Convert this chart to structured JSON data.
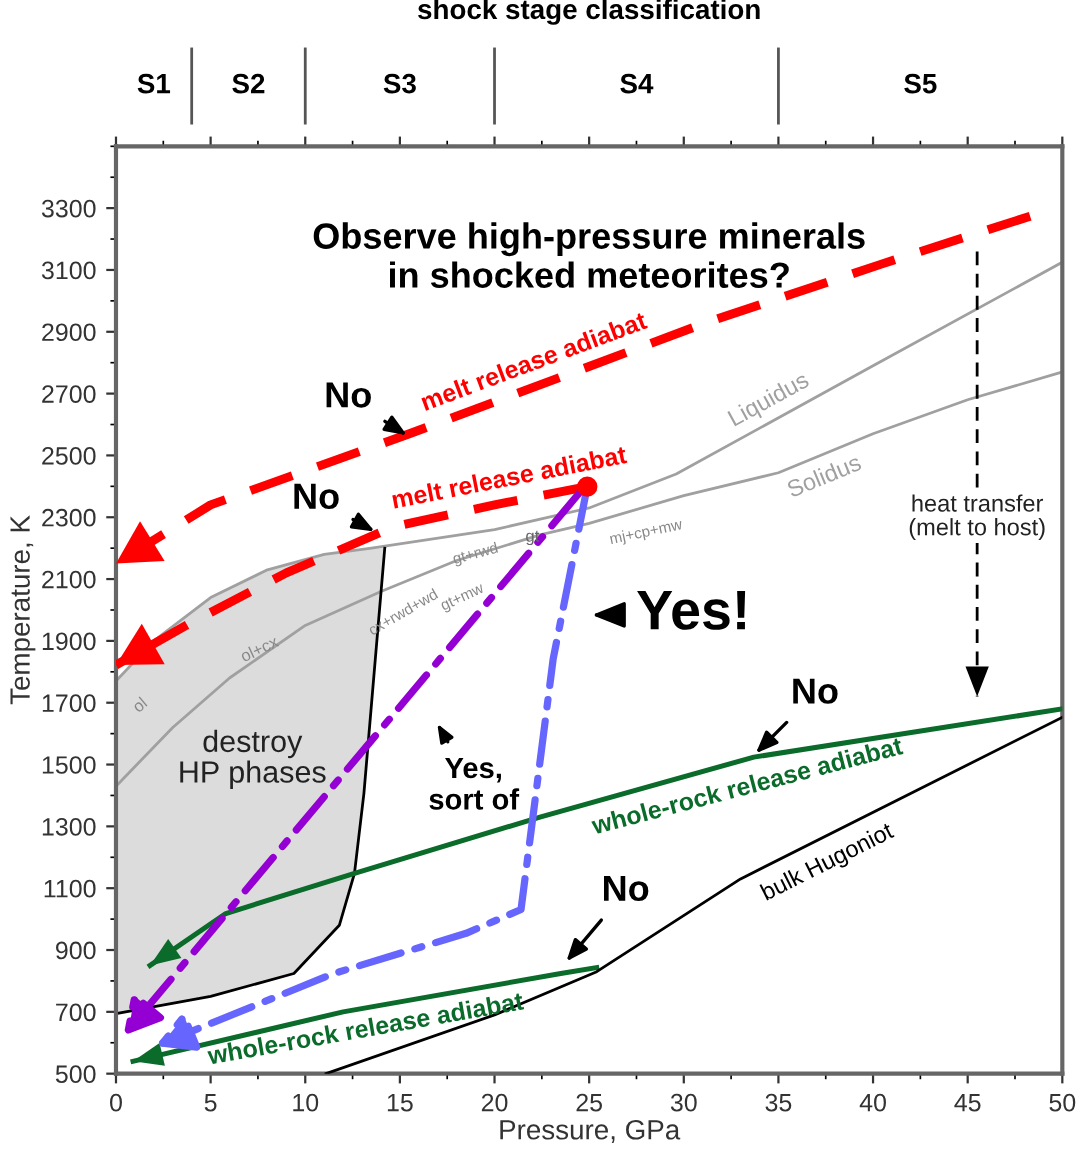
{
  "chart_data": {
    "type": "line",
    "title": "Observe high-pressure minerals\nin shocked meteorites?",
    "xlabel": "Pressure, GPa",
    "ylabel": "Temperature, K",
    "x2label": "shock stage classification",
    "xlim": [
      0,
      50
    ],
    "ylim": [
      500,
      3500
    ],
    "xticks": [
      0,
      5,
      10,
      15,
      20,
      25,
      30,
      35,
      40,
      45,
      50
    ],
    "yticks": [
      500,
      700,
      900,
      1100,
      1300,
      1500,
      1700,
      1900,
      2100,
      2300,
      2500,
      2700,
      2900,
      3100,
      3300
    ],
    "grid": false,
    "series": [
      {
        "name": "melt release adiabat",
        "color": "#ff0000",
        "line_style": "dashed",
        "x": [
          48.3,
          40.4,
          31.2,
          15.5,
          5,
          0
        ],
        "values": [
          3274,
          3118,
          2930,
          2570,
          2340,
          2150
        ]
      },
      {
        "name": "melt release adiabat",
        "color": "#ff0000",
        "line_style": "dashed",
        "x": [
          24.9,
          20,
          14.7,
          9,
          4,
          0
        ],
        "values": [
          2399,
          2340,
          2270,
          2120,
          1960,
          1822
        ]
      },
      {
        "type": "scatter",
        "color": "#ff0000",
        "marker": "circle",
        "x": [
          24.9
        ],
        "values": [
          2399
        ]
      },
      {
        "name": "Liquidus",
        "color": "#a0a0a0",
        "line_style": "solid",
        "x": [
          0,
          2,
          5,
          8,
          11,
          13.5,
          20,
          25,
          29.6,
          40,
          50
        ],
        "values": [
          1770,
          1900,
          2040,
          2130,
          2180,
          2200,
          2260,
          2330,
          2440,
          2790,
          3125
        ]
      },
      {
        "name": "Solidus",
        "color": "#a0a0a0",
        "line_style": "solid",
        "x": [
          0,
          3,
          6,
          10,
          14,
          18,
          22.4,
          25,
          30,
          35,
          40,
          45,
          50
        ],
        "values": [
          1430,
          1620,
          1780,
          1950,
          2060,
          2160,
          2243,
          2280,
          2370,
          2444,
          2570,
          2680,
          2770
        ]
      },
      {
        "color": "#000000",
        "line_style": "solid",
        "x": [
          0,
          5,
          9.4,
          11.8,
          12.6,
          13.1,
          13.7,
          14.2
        ],
        "values": [
          694,
          750,
          824,
          980,
          1148,
          1407,
          1840,
          2200
        ]
      },
      {
        "name": "whole-rock release adiabat",
        "color": "#0a6b2a",
        "line_style": "solid",
        "x": [
          50,
          33.7,
          22.4,
          12.6,
          5.8,
          1.8
        ],
        "values": [
          1680,
          1524,
          1330,
          1148,
          1018,
          850
        ]
      },
      {
        "name": "whole-rock release adiabat",
        "color": "#0a6b2a",
        "line_style": "solid",
        "x": [
          25.4,
          23.5,
          12,
          0.9
        ],
        "values": [
          843,
          824,
          700,
          540
        ]
      },
      {
        "name": "bulk Hugoniot",
        "color": "#000000",
        "line_style": "solid",
        "x": [
          11.1,
          20,
          25.4,
          33,
          50
        ],
        "values": [
          500,
          690,
          830,
          1130,
          1653
        ]
      },
      {
        "color": "#000000",
        "line_style": "dashed",
        "x": [
          45.5,
          45.5
        ],
        "values": [
          3160,
          1720
        ]
      }
    ],
    "annotations": [
      {
        "text": "No",
        "x": 15.5,
        "y": 2560
      },
      {
        "text": "No",
        "x": 13.8,
        "y": 2250
      },
      "Yes!",
      "Yes,\nsort of",
      {
        "text": "No",
        "x": 33.7,
        "y": 1530
      },
      {
        "text": "No",
        "x": 23.7,
        "y": 856
      },
      "destroy\nHP phases",
      "heat transfer\n(melt to host)",
      "ol",
      "ol+cx",
      "cx+rwd+wd",
      "gt+mw",
      "gt+rwd",
      "gt",
      "mj+cp+mw",
      "S1",
      "S2",
      "S3",
      "S4",
      "S5"
    ]
  }
}
